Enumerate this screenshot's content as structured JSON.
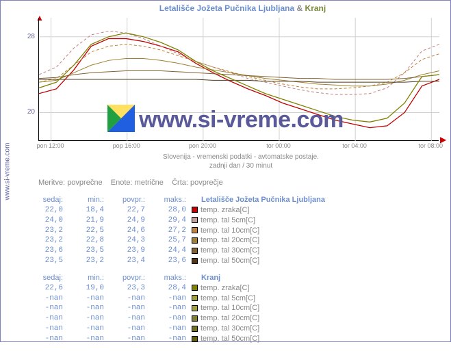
{
  "source": {
    "label": "www.si-vreme.com",
    "color": "#6060a0"
  },
  "title": {
    "part_a": "Letališče Jožeta Pučnika Ljubljana",
    "amp": "&",
    "part_b": "Kranj",
    "color_a": "#6b8ecf",
    "color_b": "#7a8a3a"
  },
  "watermark": "www.si-vreme.com",
  "chart": {
    "type": "line",
    "background_color": "#ffffff",
    "grid_color": "#d0d0d0",
    "ylim": [
      17,
      30
    ],
    "yticks": [
      20,
      28
    ],
    "xticks": [
      "pon 12:00",
      "pop 16:00",
      "pon 20:00",
      "tor 00:00",
      "tor 04:00",
      "tor 08:00"
    ],
    "subtitle1": "Slovenija - vremenski podatki - avtomatske postaje.",
    "subtitle2": "zadnji dan / 30 minut",
    "series": [
      {
        "name": "LJ temp. zraka",
        "color": "#c00000",
        "dash": "",
        "width": 1.3,
        "y": [
          22.0,
          22.5,
          24.5,
          27.0,
          27.8,
          27.8,
          27.5,
          27.0,
          26.4,
          25.2,
          24.2,
          23.3,
          22.5,
          21.8,
          21.0,
          20.4,
          19.8,
          19.2,
          18.8,
          18.4,
          18.6,
          20.0,
          22.8,
          23.5
        ]
      },
      {
        "name": "LJ tal 5cm",
        "color": "#c08080",
        "dash": "4 3",
        "width": 1,
        "y": [
          24.0,
          24.8,
          26.8,
          28.2,
          28.6,
          28.4,
          27.8,
          27.0,
          26.2,
          25.4,
          24.8,
          24.2,
          23.6,
          23.2,
          22.8,
          22.4,
          22.1,
          21.9,
          21.9,
          22.0,
          22.6,
          24.2,
          26.5,
          27.2
        ]
      },
      {
        "name": "LJ tal 10cm",
        "color": "#c08030",
        "dash": "4 3",
        "width": 1,
        "y": [
          23.2,
          23.6,
          25.0,
          26.4,
          27.0,
          27.2,
          27.0,
          26.6,
          26.0,
          25.4,
          24.8,
          24.3,
          23.8,
          23.4,
          23.0,
          22.7,
          22.5,
          22.5,
          22.6,
          22.8,
          23.2,
          24.2,
          25.6,
          26.2
        ]
      },
      {
        "name": "LJ tal 20cm",
        "color": "#a08030",
        "dash": "",
        "width": 1,
        "y": [
          23.2,
          23.4,
          24.2,
          25.0,
          25.5,
          25.7,
          25.7,
          25.5,
          25.2,
          24.8,
          24.5,
          24.2,
          23.9,
          23.6,
          23.4,
          23.2,
          23.0,
          22.9,
          22.8,
          22.8,
          23.0,
          23.4,
          24.0,
          24.4
        ]
      },
      {
        "name": "LJ tal 30cm",
        "color": "#806030",
        "dash": "",
        "width": 1,
        "y": [
          23.6,
          23.7,
          24.0,
          24.2,
          24.3,
          24.4,
          24.4,
          24.4,
          24.3,
          24.2,
          24.1,
          24.0,
          23.9,
          23.8,
          23.7,
          23.6,
          23.6,
          23.5,
          23.5,
          23.5,
          23.5,
          23.6,
          23.8,
          24.0
        ]
      },
      {
        "name": "LJ tal 50cm",
        "color": "#503818",
        "dash": "",
        "width": 1,
        "y": [
          23.5,
          23.5,
          23.5,
          23.5,
          23.5,
          23.5,
          23.5,
          23.5,
          23.5,
          23.5,
          23.4,
          23.4,
          23.4,
          23.3,
          23.3,
          23.3,
          23.2,
          23.2,
          23.2,
          23.2,
          23.2,
          23.2,
          23.3,
          23.3
        ]
      },
      {
        "name": "KR temp. zraka",
        "color": "#808000",
        "dash": "",
        "width": 1.3,
        "y": [
          22.6,
          23.2,
          25.0,
          27.2,
          28.0,
          28.4,
          28.0,
          27.4,
          26.6,
          25.4,
          24.4,
          23.6,
          22.8,
          22.0,
          21.4,
          20.8,
          20.2,
          19.6,
          19.2,
          19.0,
          19.4,
          21.0,
          23.8,
          24.0
        ]
      }
    ]
  },
  "meritve": {
    "m_label": "Meritve:",
    "m_val": "povprečne",
    "e_label": "Enote:",
    "e_val": "metrične",
    "c_label": "Črta:",
    "c_val": "povprečje"
  },
  "tables": {
    "headers": [
      "sedaj:",
      "min.:",
      "povpr.:",
      "maks.:"
    ],
    "group1": {
      "title": "Letališče Jožeta Pučnika Ljubljana",
      "rows": [
        {
          "sedaj": "22,0",
          "min": "18,4",
          "povpr": "22,7",
          "maks": "28,0",
          "color": "#c00000",
          "label": "temp. zraka[C]"
        },
        {
          "sedaj": "24,0",
          "min": "21,9",
          "povpr": "24,9",
          "maks": "29,4",
          "color": "#c0a0a0",
          "label": "temp. tal  5cm[C]"
        },
        {
          "sedaj": "23,2",
          "min": "22,5",
          "povpr": "24,6",
          "maks": "27,2",
          "color": "#c08040",
          "label": "temp. tal 10cm[C]"
        },
        {
          "sedaj": "23,2",
          "min": "22,8",
          "povpr": "24,3",
          "maks": "25,7",
          "color": "#a08030",
          "label": "temp. tal 20cm[C]"
        },
        {
          "sedaj": "23,6",
          "min": "23,5",
          "povpr": "23,9",
          "maks": "24,4",
          "color": "#806030",
          "label": "temp. tal 30cm[C]"
        },
        {
          "sedaj": "23,5",
          "min": "23,2",
          "povpr": "23,4",
          "maks": "23,6",
          "color": "#503818",
          "label": "temp. tal 50cm[C]"
        }
      ]
    },
    "group2": {
      "title": "Kranj",
      "rows": [
        {
          "sedaj": "22,6",
          "min": "19,0",
          "povpr": "23,3",
          "maks": "28,4",
          "color": "#808000",
          "label": "temp. zraka[C]"
        },
        {
          "sedaj": "-nan",
          "min": "-nan",
          "povpr": "-nan",
          "maks": "-nan",
          "color": "#a0a040",
          "label": "temp. tal  5cm[C]"
        },
        {
          "sedaj": "-nan",
          "min": "-nan",
          "povpr": "-nan",
          "maks": "-nan",
          "color": "#a0a040",
          "label": "temp. tal 10cm[C]"
        },
        {
          "sedaj": "-nan",
          "min": "-nan",
          "povpr": "-nan",
          "maks": "-nan",
          "color": "#808030",
          "label": "temp. tal 20cm[C]"
        },
        {
          "sedaj": "-nan",
          "min": "-nan",
          "povpr": "-nan",
          "maks": "-nan",
          "color": "#707020",
          "label": "temp. tal 30cm[C]"
        },
        {
          "sedaj": "-nan",
          "min": "-nan",
          "povpr": "-nan",
          "maks": "-nan",
          "color": "#606010",
          "label": "temp. tal 50cm[C]"
        }
      ]
    }
  }
}
